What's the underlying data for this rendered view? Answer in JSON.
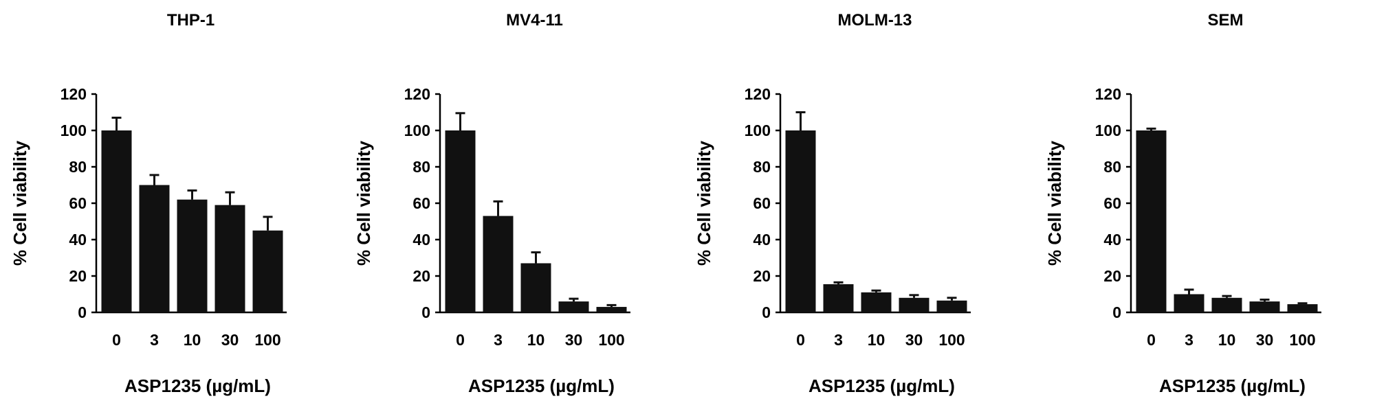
{
  "chart_data": [
    {
      "type": "bar",
      "title": "THP-1",
      "xlabel": "ASP1235 (µg/mL)",
      "ylabel": "% Cell viability",
      "categories": [
        "0",
        "3",
        "10",
        "30",
        "100"
      ],
      "values": [
        100,
        70,
        62,
        59,
        45
      ],
      "errors": [
        7,
        5.5,
        5,
        7,
        7.5
      ],
      "ylim": [
        0,
        120
      ],
      "yticks": [
        "0",
        "20",
        "40",
        "60",
        "80",
        "100",
        "120"
      ],
      "bar_color": "#111111"
    },
    {
      "type": "bar",
      "title": "MV4-11",
      "xlabel": "ASP1235 (µg/mL)",
      "ylabel": "% Cell viability",
      "categories": [
        "0",
        "3",
        "10",
        "30",
        "100"
      ],
      "values": [
        100,
        53,
        27,
        6,
        3
      ],
      "errors": [
        9.5,
        8,
        6,
        1.5,
        1
      ],
      "ylim": [
        0,
        120
      ],
      "yticks": [
        "0",
        "20",
        "40",
        "60",
        "80",
        "100",
        "120"
      ],
      "bar_color": "#111111"
    },
    {
      "type": "bar",
      "title": "MOLM-13",
      "xlabel": "ASP1235 (µg/mL)",
      "ylabel": "% Cell viability",
      "categories": [
        "0",
        "3",
        "10",
        "30",
        "100"
      ],
      "values": [
        100,
        15.5,
        11,
        8,
        6.5
      ],
      "errors": [
        10,
        1,
        1,
        1.5,
        1.5
      ],
      "ylim": [
        0,
        120
      ],
      "yticks": [
        "0",
        "20",
        "40",
        "60",
        "80",
        "100",
        "120"
      ],
      "bar_color": "#111111"
    },
    {
      "type": "bar",
      "title": "SEM",
      "xlabel": "ASP1235 (µg/mL)",
      "ylabel": "% Cell viability",
      "categories": [
        "0",
        "3",
        "10",
        "30",
        "100"
      ],
      "values": [
        100,
        10,
        8,
        6,
        4.5
      ],
      "errors": [
        1,
        2.5,
        1,
        1,
        0.5
      ],
      "ylim": [
        0,
        120
      ],
      "yticks": [
        "0",
        "20",
        "40",
        "60",
        "80",
        "100",
        "120"
      ],
      "bar_color": "#111111"
    }
  ]
}
